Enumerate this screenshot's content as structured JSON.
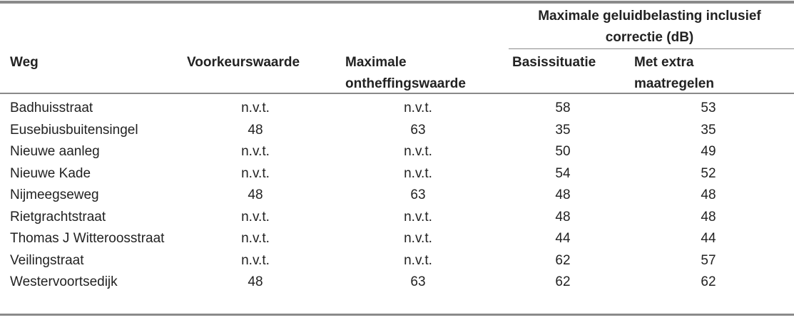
{
  "table": {
    "group_header": "Maximale geluidbelasting inclusief correctie (dB)",
    "headers": [
      "Weg",
      "Voorkeurswaarde",
      "Maximale ontheffingswaarde",
      "Basissituatie",
      "Met extra maatregelen"
    ],
    "rows": [
      [
        "Badhuisstraat",
        "n.v.t.",
        "n.v.t.",
        58,
        53
      ],
      [
        "Eusebiusbuitensingel",
        48,
        63,
        35,
        35
      ],
      [
        "Nieuwe aanleg",
        "n.v.t.",
        "n.v.t.",
        50,
        49
      ],
      [
        "Nieuwe Kade",
        "n.v.t.",
        "n.v.t.",
        54,
        52
      ],
      [
        "Nijmeegseweg",
        48,
        63,
        48,
        48
      ],
      [
        "Rietgrachtstraat",
        "n.v.t.",
        "n.v.t.",
        48,
        48
      ],
      [
        "Thomas J Witteroosstraat",
        "n.v.t.",
        "n.v.t.",
        44,
        44
      ],
      [
        "Veilingstraat",
        "n.v.t.",
        "n.v.t.",
        62,
        57
      ],
      [
        "Westervoortsedijk",
        48,
        63,
        62,
        62
      ]
    ]
  }
}
